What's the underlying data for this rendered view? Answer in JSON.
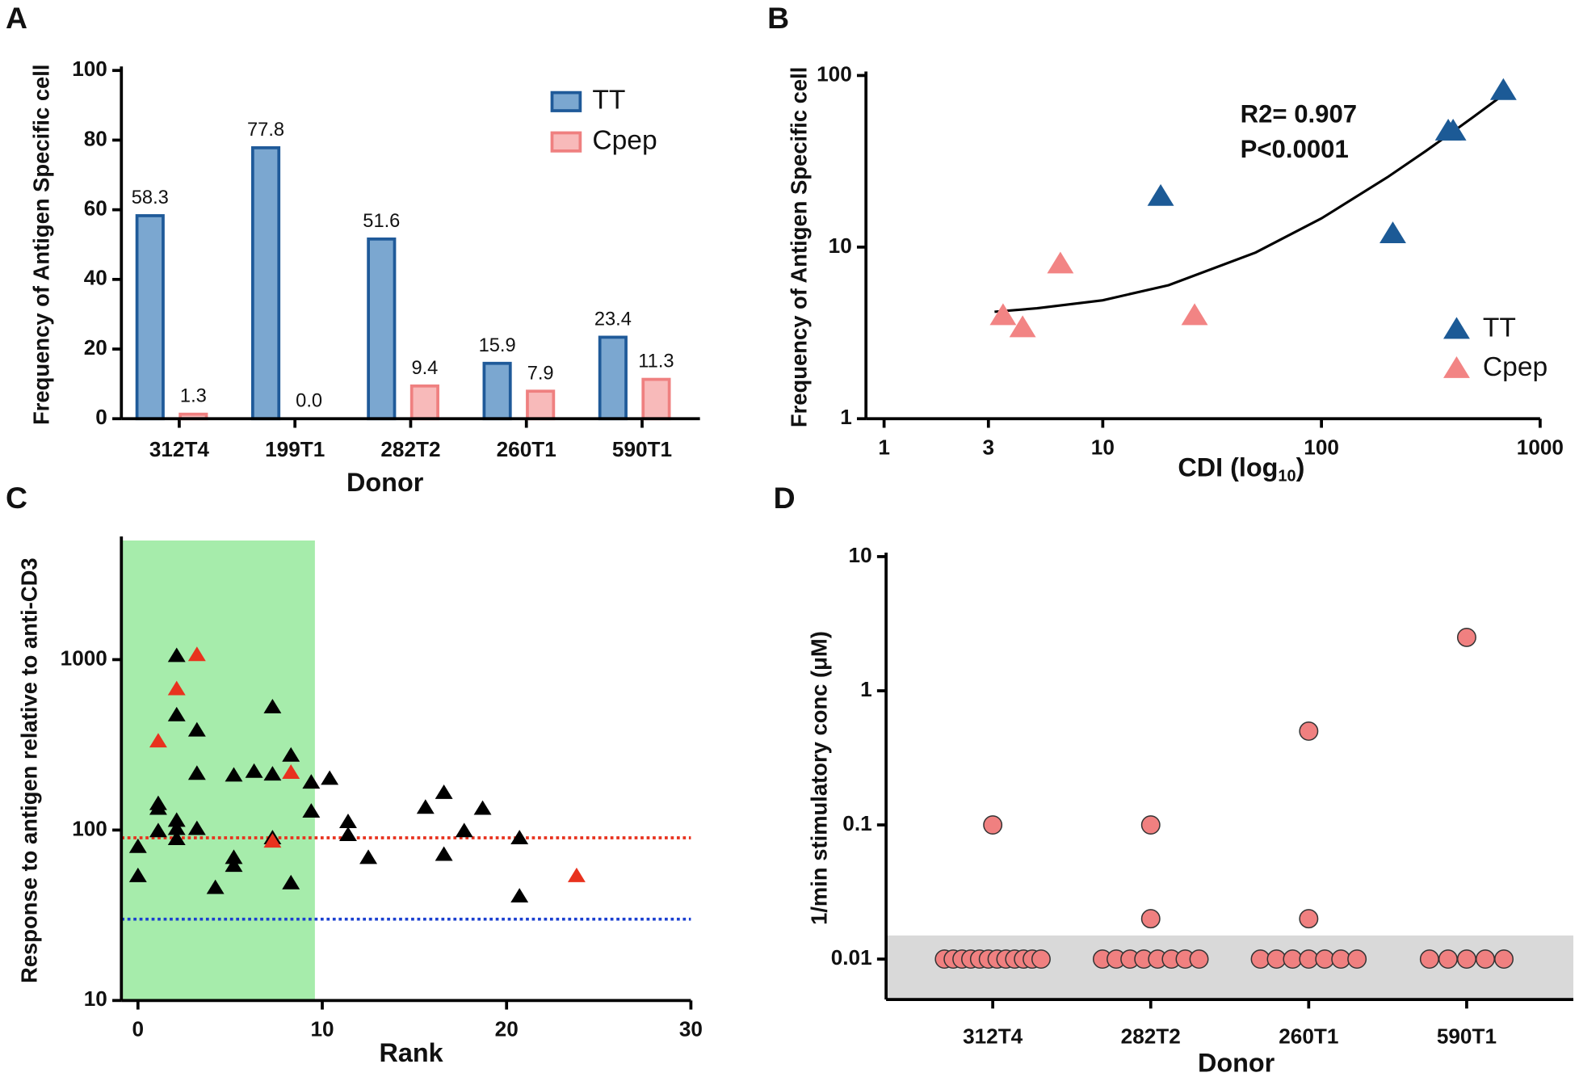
{
  "chart_data": [
    {
      "type": "bar",
      "panel": "A",
      "xlabel": "Donor",
      "ylabel": "Frequency of Antigen Specific cell",
      "categories": [
        "312T4",
        "199T1",
        "282T2",
        "260T1",
        "590T1"
      ],
      "series": [
        {
          "name": "TT",
          "color": "#7ba7d0",
          "edge": "#1f5a99",
          "values": [
            58.3,
            77.8,
            51.6,
            15.9,
            23.4
          ],
          "value_labels": [
            "58.3",
            "77.8",
            "51.6",
            "15.9",
            "23.4"
          ]
        },
        {
          "name": "Cpep",
          "color": "#f8baba",
          "edge": "#ef8080",
          "values": [
            1.3,
            0.0,
            9.4,
            7.9,
            11.3
          ],
          "value_labels": [
            "1.3",
            "0.0",
            "9.4",
            "7.9",
            "11.3"
          ]
        }
      ],
      "ylim": [
        0,
        100
      ],
      "yticks": [
        0,
        20,
        40,
        60,
        80,
        100
      ],
      "legend": "upper right"
    },
    {
      "type": "scatter",
      "panel": "B",
      "xlabel": "CDI (log",
      "xlabel_sub": "10",
      "xlabel_end": ")",
      "ylabel": "Frequency of Antigen Specific cell",
      "annotations": [
        "R2= 0.907",
        "P<0.0001"
      ],
      "xlog": true,
      "ylog": true,
      "xlim": [
        1,
        1000
      ],
      "ylim": [
        1,
        100
      ],
      "xticks": [
        1,
        3,
        10,
        100,
        1000
      ],
      "yticks": [
        1,
        10,
        100
      ],
      "series": [
        {
          "name": "TT",
          "color": "#1c5a96",
          "x": [
            18.4,
            212,
            380,
            400,
            679
          ],
          "values": [
            19.8,
            12,
            47.6,
            47.6,
            82
          ]
        },
        {
          "name": "Cpep",
          "color": "#f28484",
          "x": [
            3.5,
            4.3,
            6.4,
            26.3
          ],
          "values": [
            4.0,
            3.4,
            8.0,
            4.0
          ]
        }
      ],
      "fit": {
        "x": [
          3.2,
          5,
          10,
          20,
          50,
          100,
          200,
          300,
          400,
          500,
          650
        ],
        "y": [
          4.2,
          4.4,
          4.9,
          6.0,
          9.3,
          14.7,
          25.5,
          36.3,
          47.1,
          57.9,
          74.1
        ]
      },
      "legend": "lower right"
    },
    {
      "type": "scatter",
      "panel": "C",
      "xlabel": "Rank",
      "ylabel": "Response to antigen relative to anti-CD3",
      "xlog": false,
      "ylog": true,
      "xlim": [
        -0.9,
        30
      ],
      "ylim": [
        10,
        5000
      ],
      "xticks": [
        0,
        10,
        20,
        30
      ],
      "yticks": [
        10,
        100,
        1000
      ],
      "shaded_region": {
        "x": [
          -0.9,
          9.6
        ],
        "color": "#a6ecab"
      },
      "reference_lines": [
        {
          "y": 90,
          "color": "#e8321e"
        },
        {
          "y": 30,
          "color": "#1a3fd0"
        }
      ],
      "series": [
        {
          "color": "#000000",
          "x": [
            0,
            0,
            1.1,
            1.1,
            1.1,
            2.1,
            2.1,
            2.1,
            2.1,
            2.1,
            3.2,
            3.2,
            3.2,
            4.2,
            5.2,
            5.2,
            5.2,
            6.3,
            7.3,
            7.3,
            7.3,
            8.3,
            8.3,
            9.4,
            9.4,
            10.4,
            11.4,
            11.4,
            12.5,
            15.6,
            16.6,
            16.6,
            17.7,
            18.7,
            20.7,
            20.7
          ],
          "values": [
            80,
            54,
            143,
            134,
            99,
            1056,
            474,
            114,
            102,
            89,
            386,
            215,
            102,
            46,
            210,
            69,
            62,
            221,
            213,
            528,
            90,
            275,
            49,
            191,
            129,
            201,
            112,
            94,
            69,
            136,
            166,
            72,
            99,
            134,
            90,
            41
          ]
        },
        {
          "color": "#e8321e",
          "x": [
            1.1,
            2.1,
            3.2,
            7.3,
            8.3,
            23.8
          ],
          "values": [
            333,
            674,
            1070,
            86,
            218,
            54
          ]
        }
      ]
    },
    {
      "type": "strip",
      "panel": "D",
      "xlabel": "Donor",
      "ylabel": "1/min stimulatory conc (μM)",
      "ylog": true,
      "ylim": [
        0.005,
        10
      ],
      "yticks": [
        0.01,
        0.1,
        1,
        10
      ],
      "shaded_region_top": 0.015,
      "shade_color": "#d9d9d9",
      "color": "#f08080",
      "categories": [
        "312T4",
        "282T2",
        "260T1",
        "590T1"
      ],
      "values": [
        [
          0.1,
          0.01,
          0.01,
          0.01,
          0.01,
          0.01,
          0.01,
          0.01,
          0.01,
          0.01,
          0.01,
          0.01,
          0.01
        ],
        [
          0.1,
          0.02,
          0.01,
          0.01,
          0.01,
          0.01,
          0.01,
          0.01,
          0.01,
          0.01
        ],
        [
          0.5,
          0.02,
          0.01,
          0.01,
          0.01,
          0.01,
          0.01,
          0.01,
          0.01
        ],
        [
          2.5,
          0.01,
          0.01,
          0.01,
          0.01,
          0.01
        ]
      ]
    }
  ]
}
